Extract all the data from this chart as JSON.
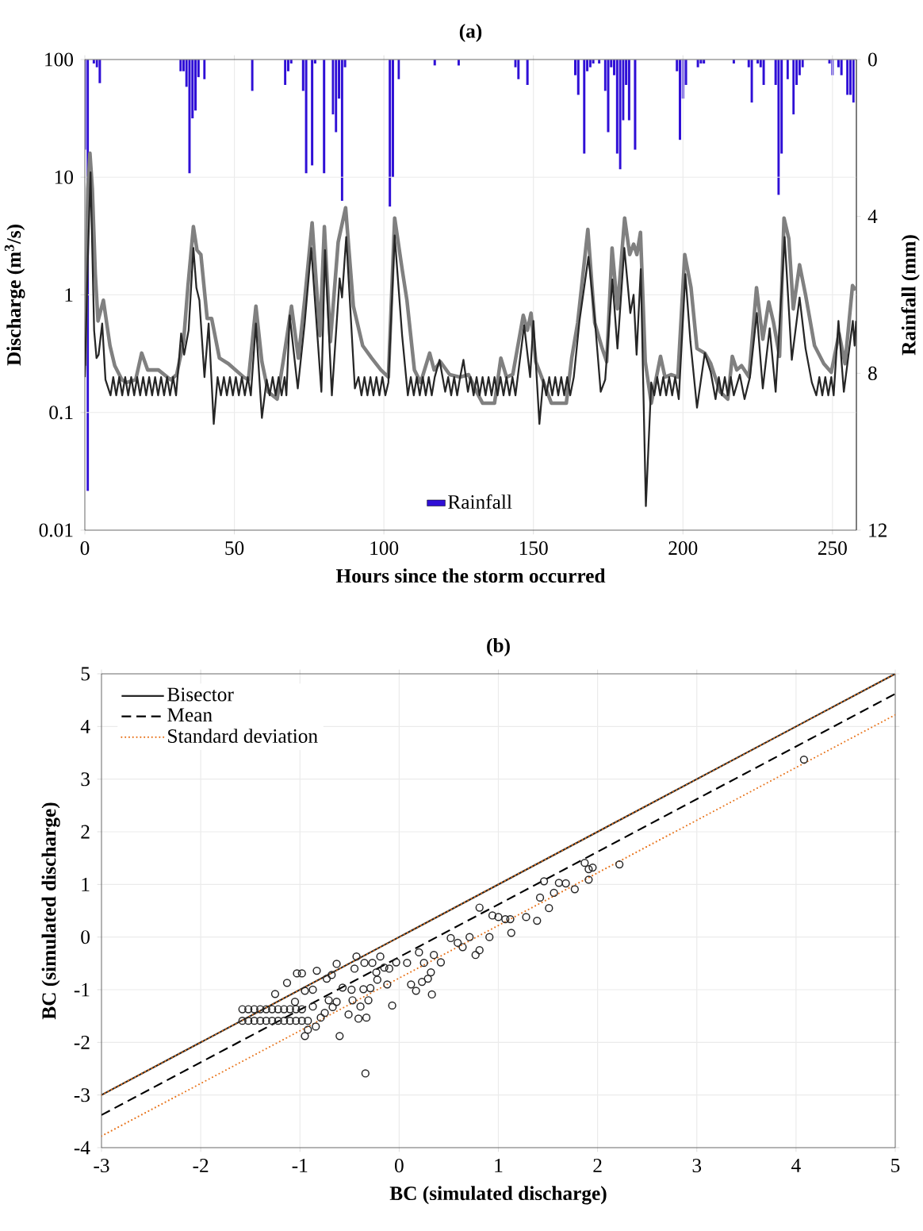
{
  "chart_data": [
    {
      "type": "bar",
      "ylabel": "Rainfall (mm)",
      "xlim": [
        0,
        258
      ],
      "ylim": [
        12,
        0
      ],
      "yticks": [
        0,
        4,
        8,
        12
      ],
      "tick_labels": "y",
      "legend": "bottom",
      "series": [
        {
          "name": "Rainfall",
          "color": "#2f0fd6",
          "x": [
            0,
            1,
            3,
            4,
            5,
            32,
            33,
            34,
            35,
            36,
            37,
            38,
            40,
            56,
            67,
            68,
            69,
            73,
            74,
            76,
            77,
            80,
            83,
            84,
            85,
            86,
            87,
            102,
            103,
            105,
            117,
            125,
            144,
            145,
            148,
            164,
            165,
            167,
            168,
            169,
            170,
            172,
            174,
            175,
            176,
            177,
            178,
            179,
            180,
            181,
            182,
            184,
            198,
            199,
            200,
            201,
            205,
            206,
            207,
            217,
            222,
            223,
            225,
            226,
            227,
            231,
            232,
            233,
            235,
            237,
            238,
            239,
            240,
            249,
            250,
            252,
            253,
            255,
            256,
            257
          ],
          "values": [
            2.3,
            11,
            0.1,
            0.2,
            0.6,
            0.3,
            0.3,
            0.7,
            2.9,
            1.5,
            1.3,
            0.45,
            0.5,
            0.8,
            0.65,
            0.3,
            0.1,
            0.8,
            2.9,
            2.7,
            0.1,
            2.9,
            1.4,
            1.85,
            1,
            3.6,
            0.2,
            3.75,
            3,
            0.5,
            0.15,
            0.15,
            0.2,
            0.5,
            0.65,
            0.4,
            0.9,
            2.4,
            0.3,
            0.2,
            0.1,
            0.1,
            0.8,
            1.85,
            0.2,
            0.4,
            2.4,
            2.8,
            1.55,
            0.65,
            1.55,
            2.3,
            0.3,
            2.05,
            1,
            0.65,
            0.2,
            0.1,
            0.1,
            0.1,
            0.2,
            1.1,
            0.1,
            0.2,
            0.65,
            0.65,
            3.45,
            2.4,
            0.5,
            1.4,
            0.65,
            0.4,
            0.2,
            0.1,
            0.4,
            0.2,
            0.4,
            0.9,
            0.9,
            1.1
          ]
        }
      ]
    },
    {
      "type": "line",
      "title": "(a)",
      "xlabel": "Hours since the storm occurred",
      "ylabel": "Discharge (m$^{3}$/s)",
      "xlim": [
        0,
        258
      ],
      "xticks": [
        0,
        50,
        100,
        150,
        200,
        250
      ],
      "ylim": [
        0.01,
        100
      ],
      "yticks": [
        0.01,
        0.1,
        1,
        10,
        100
      ],
      "log": "y",
      "grid": true,
      "series": [
        {
          "type": "line",
          "color": "#808080",
          "x": [
            0,
            1,
            1.7,
            2.5,
            3.5,
            4.4,
            6.2,
            8.4,
            10,
            12.4,
            14,
            17,
            19,
            21,
            24.6,
            28.7,
            30.7,
            33,
            34.5,
            36.3,
            37.5,
            38.8,
            40.9,
            42.4,
            45,
            48,
            53.1,
            54.7,
            57.2,
            59.2,
            61.3,
            64.3,
            66.3,
            69.1,
            71.4,
            73.5,
            76,
            78.6,
            80.1,
            82.1,
            84.7,
            87.2,
            89.8,
            92.9,
            95.9,
            99,
            101.5,
            103.6,
            106.1,
            107.7,
            110.2,
            112.3,
            115.3,
            116.8,
            118.9,
            122,
            125.5,
            128.3,
            131,
            133,
            137,
            139.1,
            141,
            143.1,
            146.6,
            148,
            149.2,
            150.8,
            153.8,
            156,
            161,
            162.8,
            164.8,
            168.2,
            170.5,
            173,
            174.5,
            176.3,
            178.1,
            180.5,
            182.2,
            183.5,
            184.6,
            185.8,
            187.4,
            189.4,
            192.5,
            194,
            196,
            198.3,
            200.6,
            202.7,
            204.7,
            207.3,
            209.3,
            212.4,
            215,
            216.5,
            218,
            219.6,
            222.1,
            224.6,
            226.7,
            228.7,
            230.3,
            232.3,
            233.8,
            235.4,
            236.9,
            239,
            241,
            244,
            247.1,
            249.6,
            252.2,
            254.2,
            256.7,
            257.8
          ],
          "values": [
            0.25,
            8,
            16,
            8,
            1.5,
            0.6,
            0.9,
            0.37,
            0.25,
            0.19,
            0.18,
            0.19,
            0.32,
            0.23,
            0.23,
            0.19,
            0.21,
            0.4,
            1.2,
            3.8,
            2.4,
            2.2,
            0.63,
            0.63,
            0.29,
            0.26,
            0.2,
            0.19,
            0.8,
            0.27,
            0.15,
            0.13,
            0.27,
            0.8,
            0.29,
            0.9,
            4.1,
            0.45,
            3.8,
            0.4,
            2.8,
            5.5,
            0.8,
            0.37,
            0.29,
            0.23,
            0.2,
            4.5,
            1.65,
            0.9,
            0.23,
            0.18,
            0.32,
            0.23,
            0.27,
            0.21,
            0.2,
            0.21,
            0.15,
            0.12,
            0.12,
            0.29,
            0.2,
            0.21,
            0.67,
            0.5,
            0.7,
            0.27,
            0.17,
            0.12,
            0.12,
            0.29,
            0.58,
            3.6,
            0.58,
            0.35,
            0.27,
            2.5,
            0.76,
            4.5,
            2.2,
            2.7,
            2.2,
            3.4,
            0.27,
            0.12,
            0.3,
            0.2,
            0.21,
            0.2,
            2.2,
            1.15,
            0.35,
            0.32,
            0.26,
            0.15,
            0.13,
            0.3,
            0.23,
            0.25,
            0.2,
            1.15,
            0.42,
            0.87,
            0.58,
            0.3,
            4.5,
            3,
            0.76,
            1.8,
            1,
            0.37,
            0.26,
            0.22,
            0.47,
            0.26,
            1.2,
            1.1
          ]
        },
        {
          "type": "line",
          "color": "#262626",
          "x": [
            0,
            1,
            1.9,
            3.1,
            3.9,
            4.6,
            5.8,
            6.9,
            8.6,
            9.5,
            10.5,
            11.5,
            12.5,
            13.5,
            14.5,
            15.5,
            16.5,
            17.5,
            18.5,
            19.5,
            20.5,
            21.5,
            22.5,
            23.5,
            24.5,
            25.5,
            26.5,
            27.5,
            28.5,
            29.5,
            30.5,
            32.2,
            33.2,
            34.7,
            36.3,
            37.3,
            38.3,
            40,
            41.4,
            43.1,
            44.4,
            45.5,
            46.5,
            47.5,
            48.5,
            49.5,
            50.5,
            51.5,
            52.5,
            53.5,
            54.5,
            55.5,
            57.2,
            59.2,
            60.8,
            61.8,
            62.8,
            63.8,
            64.8,
            65.8,
            66.8,
            67.4,
            68.5,
            71.2,
            73.5,
            75.7,
            79.1,
            80.3,
            82.6,
            85.2,
            86,
            87.4,
            90.3,
            91.5,
            92.5,
            93.5,
            94.5,
            95.5,
            96.5,
            97.5,
            98.5,
            99.5,
            100.5,
            101.5,
            103.6,
            106.1,
            108,
            109,
            110,
            111,
            112,
            113,
            114,
            115,
            116,
            117,
            118.6,
            120.5,
            121.5,
            122.5,
            123.5,
            124.5,
            125.5,
            126.6,
            128.1,
            129,
            130,
            131,
            132,
            133,
            134,
            135,
            136,
            137,
            138,
            139,
            140,
            141,
            142,
            143,
            144,
            146.9,
            148.9,
            150,
            152,
            153.3,
            154.3,
            155.3,
            156.3,
            157.3,
            158.3,
            159.3,
            160.3,
            161.3,
            162.3,
            163.5,
            165.4,
            168.4,
            170.5,
            172.5,
            174,
            176.4,
            178.1,
            180.4,
            182.4,
            183.5,
            184.5,
            185.9,
            187.6,
            189.4,
            190.4,
            191.4,
            192.4,
            193.4,
            194.4,
            195.4,
            196.4,
            197.4,
            198.6,
            200.8,
            202.5,
            204.7,
            207.3,
            209.3,
            210.9,
            212,
            213,
            214,
            215,
            216,
            217,
            219,
            220.6,
            222.4,
            224.7,
            226.7,
            229,
            231,
            234,
            236.4,
            239,
            241,
            243.1,
            244.6,
            245.6,
            246.6,
            247.6,
            248.6,
            249.6,
            250.4,
            252,
            253.8,
            256.8,
            257.4,
            257.9
          ],
          "values": [
            0.2,
            2,
            11,
            0.5,
            0.29,
            0.31,
            0.57,
            0.19,
            0.14,
            0.2,
            0.14,
            0.2,
            0.14,
            0.2,
            0.14,
            0.2,
            0.14,
            0.2,
            0.14,
            0.2,
            0.14,
            0.2,
            0.14,
            0.2,
            0.14,
            0.2,
            0.14,
            0.2,
            0.14,
            0.2,
            0.14,
            0.47,
            0.31,
            0.5,
            2.5,
            1.15,
            0.9,
            0.2,
            0.57,
            0.08,
            0.2,
            0.14,
            0.2,
            0.14,
            0.2,
            0.14,
            0.2,
            0.14,
            0.2,
            0.14,
            0.2,
            0.14,
            0.57,
            0.09,
            0.19,
            0.14,
            0.2,
            0.14,
            0.2,
            0.14,
            0.2,
            0.14,
            0.67,
            0.16,
            0.57,
            2.5,
            0.15,
            2.4,
            0.14,
            1.38,
            0.95,
            3.1,
            0.16,
            0.2,
            0.14,
            0.2,
            0.14,
            0.2,
            0.14,
            0.2,
            0.14,
            0.2,
            0.14,
            0.18,
            3.2,
            0.45,
            0.14,
            0.2,
            0.14,
            0.2,
            0.14,
            0.2,
            0.14,
            0.2,
            0.14,
            0.2,
            0.28,
            0.15,
            0.2,
            0.14,
            0.2,
            0.14,
            0.2,
            0.28,
            0.15,
            0.2,
            0.14,
            0.2,
            0.14,
            0.2,
            0.14,
            0.2,
            0.14,
            0.2,
            0.14,
            0.2,
            0.14,
            0.2,
            0.14,
            0.2,
            0.14,
            0.55,
            0.2,
            0.6,
            0.08,
            0.19,
            0.14,
            0.2,
            0.14,
            0.2,
            0.14,
            0.2,
            0.14,
            0.2,
            0.14,
            0.2,
            0.6,
            2.1,
            0.63,
            0.15,
            0.19,
            1.35,
            0.35,
            2.5,
            0.7,
            1,
            0.31,
            1.65,
            0.016,
            0.18,
            0.14,
            0.2,
            0.14,
            0.2,
            0.14,
            0.2,
            0.14,
            0.2,
            0.13,
            1.5,
            0.4,
            0.11,
            0.32,
            0.22,
            0.13,
            0.2,
            0.14,
            0.2,
            0.14,
            0.2,
            0.14,
            0.21,
            0.13,
            0.2,
            0.7,
            0.16,
            0.52,
            0.15,
            3.1,
            0.28,
            0.95,
            0.35,
            0.18,
            0.14,
            0.2,
            0.14,
            0.2,
            0.14,
            0.2,
            0.14,
            0.6,
            0.15,
            0.6,
            0.37,
            0.6
          ]
        }
      ]
    },
    {
      "type": "scatter",
      "title": "(b)",
      "xlabel": "BC (simulated discharge)",
      "ylabel": "BC (simulated discharge)",
      "xlim": [
        -3,
        5
      ],
      "xticks": [
        -3,
        -2,
        -1,
        0,
        1,
        2,
        3,
        4,
        5
      ],
      "ylim": [
        -4,
        5
      ],
      "yticks": [
        -4,
        -3,
        -2,
        -1,
        0,
        1,
        2,
        3,
        4,
        5
      ],
      "grid": true,
      "legend": "top left",
      "marker": "circle",
      "series": [
        {
          "type": "scatter",
          "color": "#262626",
          "x": [
            -1.58,
            -1.52,
            -1.46,
            -1.4,
            -1.34,
            -1.28,
            -1.22,
            -1.16,
            -1.1,
            -1.04,
            -0.98,
            -1.58,
            -1.52,
            -1.46,
            -1.4,
            -1.34,
            -1.28,
            -1.22,
            -1.16,
            -1.1,
            -1.04,
            -0.98,
            -0.92,
            -1.25,
            -1.13,
            -1.03,
            -0.98,
            -1.05,
            -0.95,
            -0.83,
            -0.87,
            -0.95,
            -0.92,
            -0.84,
            -0.79,
            -0.75,
            -0.73,
            -0.68,
            -0.63,
            -0.67,
            -0.63,
            -0.6,
            -0.57,
            -0.51,
            -0.47,
            -0.48,
            -0.45,
            -0.43,
            -0.41,
            -0.39,
            -0.36,
            -0.35,
            -0.33,
            -0.34,
            -0.31,
            -0.29,
            -0.27,
            -0.23,
            -0.22,
            -0.19,
            -0.15,
            -0.12,
            -0.1,
            -0.07,
            -0.03,
            0.08,
            0.12,
            0.17,
            0.2,
            0.23,
            0.25,
            0.29,
            0.32,
            0.33,
            0.35,
            0.42,
            0.52,
            0.59,
            0.64,
            0.71,
            0.77,
            0.81,
            0.81,
            0.91,
            0.94,
            1.0,
            1.07,
            1.12,
            1.13,
            1.28,
            1.39,
            1.42,
            1.46,
            1.51,
            1.56,
            1.61,
            1.68,
            1.77,
            1.91,
            1.87,
            1.91,
            1.95,
            2.22,
            4.08,
            -0.71,
            -0.87
          ],
          "values": [
            -1.37,
            -1.37,
            -1.37,
            -1.37,
            -1.37,
            -1.37,
            -1.37,
            -1.37,
            -1.37,
            -1.37,
            -1.37,
            -1.59,
            -1.59,
            -1.59,
            -1.59,
            -1.59,
            -1.59,
            -1.59,
            -1.59,
            -1.59,
            -1.59,
            -1.59,
            -1.59,
            -1.08,
            -0.87,
            -0.69,
            -0.69,
            -1.23,
            -1.02,
            -0.64,
            -1.0,
            -1.88,
            -1.76,
            -1.7,
            -1.53,
            -1.44,
            -0.79,
            -0.72,
            -0.51,
            -1.33,
            -1.23,
            -1.88,
            -0.96,
            -1.47,
            -1.2,
            -1.0,
            -0.6,
            -0.37,
            -1.55,
            -1.32,
            -0.99,
            -0.49,
            -1.53,
            -2.59,
            -1.2,
            -0.97,
            -0.49,
            -0.67,
            -0.81,
            -0.37,
            -0.58,
            -0.9,
            -0.6,
            -1.3,
            -0.48,
            -0.49,
            -0.9,
            -1.02,
            -0.29,
            -0.85,
            -0.49,
            -0.79,
            -0.67,
            -1.09,
            -0.34,
            -0.48,
            -0.02,
            -0.11,
            -0.19,
            0.0,
            -0.34,
            -0.25,
            0.56,
            0.0,
            0.41,
            0.38,
            0.34,
            0.34,
            0.08,
            0.38,
            0.31,
            0.75,
            1.06,
            0.55,
            0.84,
            1.03,
            1.02,
            0.91,
            1.09,
            1.41,
            1.29,
            1.32,
            1.38,
            3.37,
            -1.2,
            -1.32
          ]
        },
        {
          "name": "Bisector",
          "type": "line",
          "marker": "none",
          "line_style": "solid",
          "color": "#262626",
          "x": [
            -3,
            5
          ],
          "values": [
            -3,
            5
          ]
        },
        {
          "name": "Mean",
          "type": "line",
          "marker": "none",
          "line_style": "dashed",
          "color": "#000000",
          "x": [
            -3,
            5
          ],
          "values": [
            -3.38,
            4.62
          ]
        },
        {
          "name": "Standard deviation",
          "type": "line",
          "marker": "none",
          "line_style": "dotted",
          "color": "#e8731a",
          "x": [
            -3,
            5
          ],
          "values": [
            -3,
            5
          ]
        },
        {
          "type": "line",
          "marker": "none",
          "line_style": "dotted",
          "color": "#e8731a",
          "x": [
            -3,
            5
          ],
          "values": [
            -3.78,
            4.22
          ]
        }
      ]
    }
  ]
}
